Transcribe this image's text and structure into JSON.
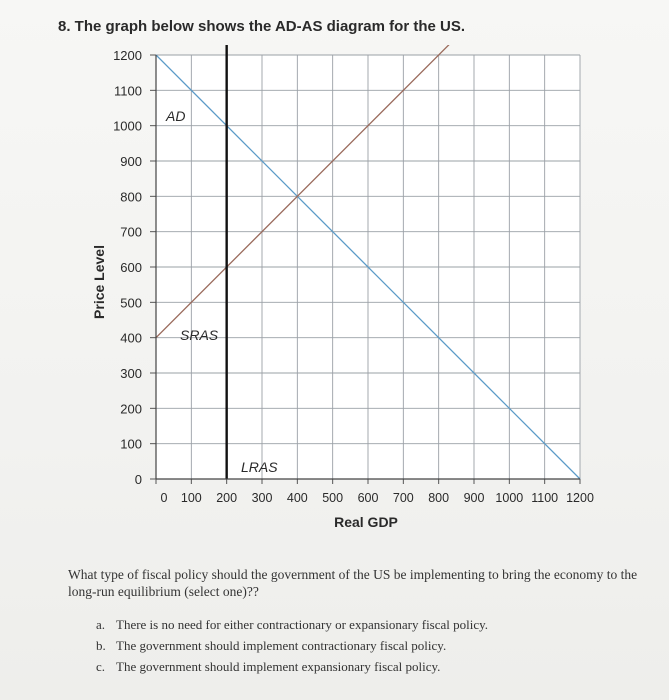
{
  "question_header": "8. The graph below shows the AD-AS diagram for the US.",
  "question_text": "What type of fiscal policy should the government of the US be implementing to bring the economy to the long-run equilibrium (select one)??",
  "options": [
    {
      "letter": "a.",
      "text": "There is no need for either contractionary or expansionary fiscal policy."
    },
    {
      "letter": "b.",
      "text": "The government should implement contractionary fiscal policy."
    },
    {
      "letter": "c.",
      "text": "The government should implement expansionary fiscal policy."
    }
  ],
  "chart_data": {
    "type": "line",
    "xlabel": "Real GDP",
    "ylabel": "Price Level",
    "xlim": [
      0,
      1200
    ],
    "ylim": [
      0,
      1200
    ],
    "x_ticks": [
      0,
      100,
      200,
      300,
      400,
      500,
      600,
      700,
      800,
      900,
      1000,
      1100,
      1200
    ],
    "y_ticks": [
      0,
      100,
      200,
      300,
      400,
      500,
      600,
      700,
      800,
      900,
      1000,
      1100,
      1200
    ],
    "grid": true,
    "series": [
      {
        "name": "AD",
        "color": "#5b9bc8",
        "points": [
          [
            0,
            1200
          ],
          [
            1200,
            0
          ]
        ]
      },
      {
        "name": "SRAS",
        "color": "#9a6b5c",
        "points": [
          [
            0,
            400
          ],
          [
            840,
            1240
          ]
        ]
      },
      {
        "name": "LRAS",
        "color": "#111111",
        "points": [
          [
            200,
            0
          ],
          [
            200,
            1240
          ]
        ]
      }
    ]
  }
}
